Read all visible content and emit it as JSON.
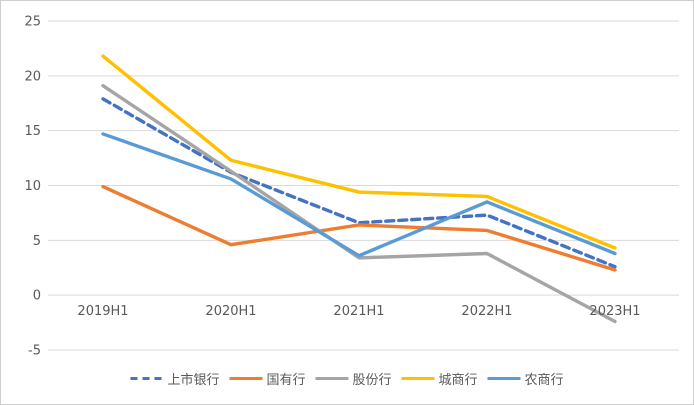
{
  "chart_data": {
    "type": "line",
    "categories": [
      "2019H1",
      "2020H1",
      "2021H1",
      "2022H1",
      "2023H1"
    ],
    "series": [
      {
        "name": "上市银行",
        "color": "#4472C4",
        "dashed": true,
        "values": [
          17.9,
          11.2,
          6.6,
          7.3,
          2.6
        ]
      },
      {
        "name": "国有行",
        "color": "#ED7D31",
        "dashed": false,
        "values": [
          9.9,
          4.6,
          6.4,
          5.9,
          2.3
        ]
      },
      {
        "name": "股份行",
        "color": "#A5A5A5",
        "dashed": false,
        "values": [
          19.1,
          11.3,
          3.4,
          3.8,
          -2.4
        ]
      },
      {
        "name": "城商行",
        "color": "#FFC000",
        "dashed": false,
        "values": [
          21.8,
          12.3,
          9.4,
          9.0,
          4.3
        ]
      },
      {
        "name": "农商行",
        "color": "#5B9BD5",
        "dashed": false,
        "values": [
          14.7,
          10.6,
          3.6,
          8.5,
          3.8
        ]
      }
    ],
    "ylim": [
      -5,
      25
    ],
    "yticks": [
      25,
      20,
      15,
      10,
      5,
      0,
      -5
    ],
    "grid": true,
    "legend_position": "bottom"
  },
  "style": {
    "grid_color": "#D9D9D9",
    "tick_text_color": "#595959",
    "background": "#FFFFFF",
    "border_color": "#CFCFCF"
  }
}
